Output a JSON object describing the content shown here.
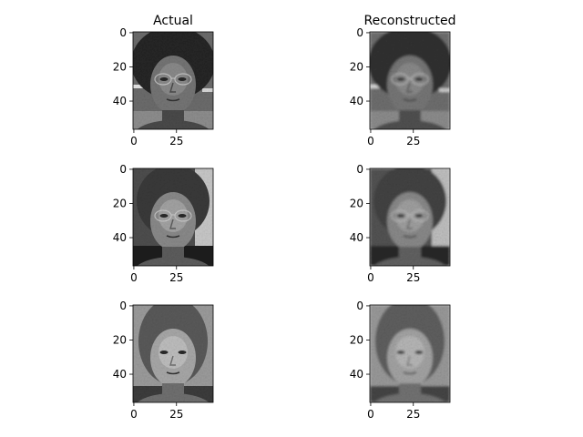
{
  "chart_data": {
    "type": "heatmap",
    "colormap": "gray",
    "image_shape": [
      57,
      47
    ],
    "column_titles": [
      "Actual",
      "Reconstructed"
    ],
    "axes": {
      "xticks": [
        0,
        25
      ],
      "xtick_labels": [
        "0",
        "25"
      ],
      "yticks": [
        0,
        20,
        40
      ],
      "ytick_labels": [
        "0",
        "20",
        "40"
      ],
      "xlim": [
        -0.5,
        46.5
      ],
      "ylim": [
        56.5,
        -0.5
      ],
      "grid": false
    },
    "panels": [
      {
        "row": 0,
        "column": "Actual",
        "subject": "face-1-actual",
        "tone": "dark",
        "hair": "dark curly",
        "glasses": true
      },
      {
        "row": 0,
        "column": "Reconstructed",
        "subject": "face-1-reconstructed",
        "tone": "dark",
        "hair": "dark curly",
        "glasses": true
      },
      {
        "row": 1,
        "column": "Actual",
        "subject": "face-2-actual",
        "tone": "medium",
        "hair": "dark",
        "glasses": true
      },
      {
        "row": 1,
        "column": "Reconstructed",
        "subject": "face-2-reconstructed",
        "tone": "medium",
        "hair": "dark",
        "glasses": true
      },
      {
        "row": 2,
        "column": "Actual",
        "subject": "face-3-actual",
        "tone": "light",
        "hair": "long",
        "glasses": false
      },
      {
        "row": 2,
        "column": "Reconstructed",
        "subject": "face-3-reconstructed",
        "tone": "light",
        "hair": "long",
        "glasses": false
      }
    ]
  }
}
